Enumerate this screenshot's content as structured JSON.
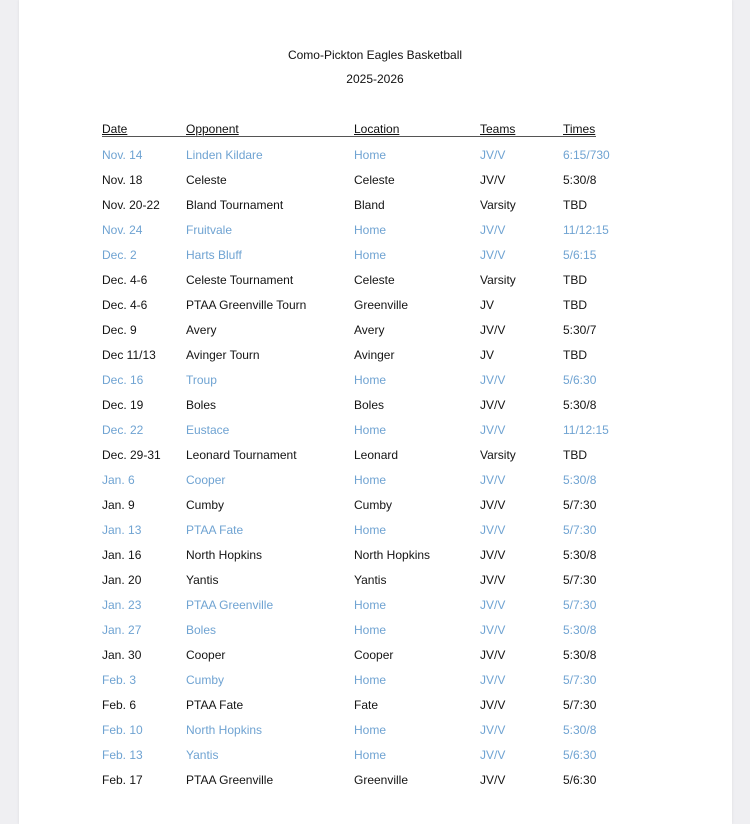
{
  "document": {
    "title": "Como-Pickton Eagles Basketball",
    "subtitle": "2025-2026",
    "colors": {
      "home_row": "#6fa3d2",
      "away_row": "#141414"
    },
    "columns": [
      "Date",
      "Opponent",
      "Location",
      "Teams",
      "Times"
    ],
    "rows": [
      [
        "Nov. 14",
        "Linden Kildare",
        "Home",
        "JV/V",
        "6:15/730"
      ],
      [
        "Nov. 18",
        "Celeste",
        "Celeste",
        "JV/V",
        "5:30/8"
      ],
      [
        "Nov. 20-22",
        "Bland Tournament",
        "Bland",
        "Varsity",
        "TBD"
      ],
      [
        "Nov. 24",
        "Fruitvale",
        "Home",
        "JV/V",
        "11/12:15"
      ],
      [
        "Dec. 2",
        "Harts Bluff",
        "Home",
        "JV/V",
        "5/6:15"
      ],
      [
        "Dec. 4-6",
        "Celeste Tournament",
        "Celeste",
        "Varsity",
        "TBD"
      ],
      [
        "Dec. 4-6",
        "PTAA Greenville Tourn",
        "Greenville",
        "JV",
        "TBD"
      ],
      [
        "Dec. 9",
        "Avery",
        "Avery",
        "JV/V",
        "5:30/7"
      ],
      [
        "Dec 11/13",
        "Avinger Tourn",
        "Avinger",
        "JV",
        "TBD"
      ],
      [
        "Dec. 16",
        "Troup",
        "Home",
        "JV/V",
        "5/6:30"
      ],
      [
        "Dec. 19",
        "Boles",
        "Boles",
        "JV/V",
        "5:30/8"
      ],
      [
        "Dec. 22",
        "Eustace",
        "Home",
        "JV/V",
        "11/12:15"
      ],
      [
        "Dec. 29-31",
        "Leonard Tournament",
        "Leonard",
        "Varsity",
        "TBD"
      ],
      [
        "Jan. 6",
        "Cooper",
        "Home",
        "JV/V",
        "5:30/8"
      ],
      [
        "Jan. 9",
        "Cumby",
        "Cumby",
        "JV/V",
        "5/7:30"
      ],
      [
        "Jan. 13",
        "PTAA Fate",
        "Home",
        "JV/V",
        "5/7:30"
      ],
      [
        "Jan. 16",
        "North Hopkins",
        "North Hopkins",
        "JV/V",
        "5:30/8"
      ],
      [
        "Jan. 20",
        "Yantis",
        "Yantis",
        "JV/V",
        "5/7:30"
      ],
      [
        "Jan. 23",
        "PTAA Greenville",
        "Home",
        "JV/V",
        "5/7:30"
      ],
      [
        "Jan. 27",
        "Boles",
        "Home",
        "JV/V",
        "5:30/8"
      ],
      [
        "Jan. 30",
        "Cooper",
        "Cooper",
        "JV/V",
        "5:30/8"
      ],
      [
        "Feb. 3",
        "Cumby",
        "Home",
        "JV/V",
        "5/7:30"
      ],
      [
        "Feb. 6",
        "PTAA Fate",
        "Fate",
        "JV/V",
        "5/7:30"
      ],
      [
        "Feb. 10",
        "North Hopkins",
        "Home",
        "JV/V",
        "5:30/8"
      ],
      [
        "Feb. 13",
        "Yantis",
        "Home",
        "JV/V",
        "5/6:30"
      ],
      [
        "Feb. 17",
        "PTAA Greenville",
        "Greenville",
        "JV/V",
        "5/6:30"
      ]
    ]
  }
}
